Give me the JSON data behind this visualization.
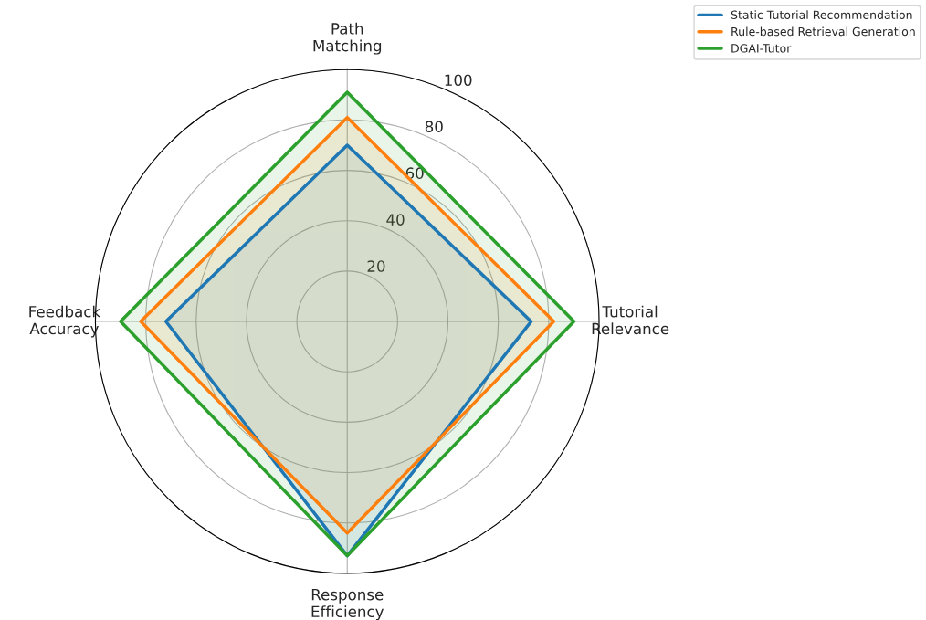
{
  "chart_data": {
    "type": "radar",
    "categories": [
      "Path\nMatching",
      "Tutorial\nRelevance",
      "Response\nEfficiency",
      "Feedback\nAccuracy"
    ],
    "series": [
      {
        "name": "Static Tutorial Recommendation",
        "color": "#1f77b4",
        "values": [
          70,
          73,
          93,
          72
        ]
      },
      {
        "name": "Rule-based Retrieval Generation",
        "color": "#ff7f0e",
        "values": [
          81,
          82,
          84,
          82
        ]
      },
      {
        "name": "DGAI-Tutor",
        "color": "#2ca02c",
        "values": [
          91,
          90,
          93,
          90
        ]
      }
    ],
    "ylim": [
      0,
      100
    ],
    "yticks": [
      20,
      40,
      60,
      80,
      100
    ],
    "grid": true,
    "legend": "top right"
  }
}
